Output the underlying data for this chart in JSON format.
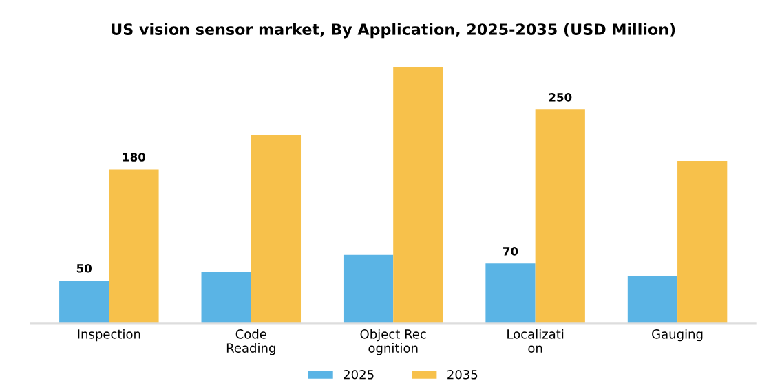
{
  "chart_data": {
    "type": "bar",
    "title": "US vision sensor market, By Application, 2025-2035 (USD Million)",
    "categories": [
      "Inspection",
      "Code\nReading",
      "Object Rec\nognition",
      "Localizati\non",
      "Gauging"
    ],
    "series": [
      {
        "name": "2025",
        "color": "#5ab4e5",
        "values": [
          50,
          60,
          80,
          70,
          55
        ],
        "value_labels": [
          "50",
          null,
          null,
          "70",
          null
        ]
      },
      {
        "name": "2035",
        "color": "#f7c14b",
        "values": [
          180,
          220,
          300,
          250,
          190
        ],
        "value_labels": [
          "180",
          null,
          null,
          "250",
          null
        ]
      }
    ],
    "legend": "bottom",
    "grid": false
  }
}
